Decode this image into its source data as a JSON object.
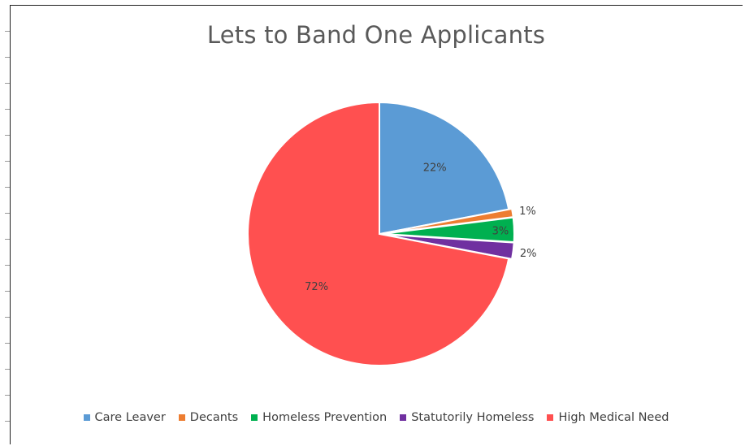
{
  "chart_data": {
    "type": "pie",
    "title": "Lets to Band One Applicants",
    "categories": [
      "Care Leaver",
      "Decants",
      "Homeless Prevention",
      "Statutorily Homeless",
      "High Medical Need"
    ],
    "values": [
      22,
      1,
      3,
      2,
      72
    ],
    "data_labels": [
      "22%",
      "1%",
      "3%",
      "2%",
      "72%"
    ],
    "exploded": [
      false,
      true,
      true,
      true,
      false
    ],
    "colors": [
      "#5B9BD5",
      "#ED7D31",
      "#00B050",
      "#7030A0",
      "#FF5050"
    ],
    "legend_position": "bottom"
  }
}
